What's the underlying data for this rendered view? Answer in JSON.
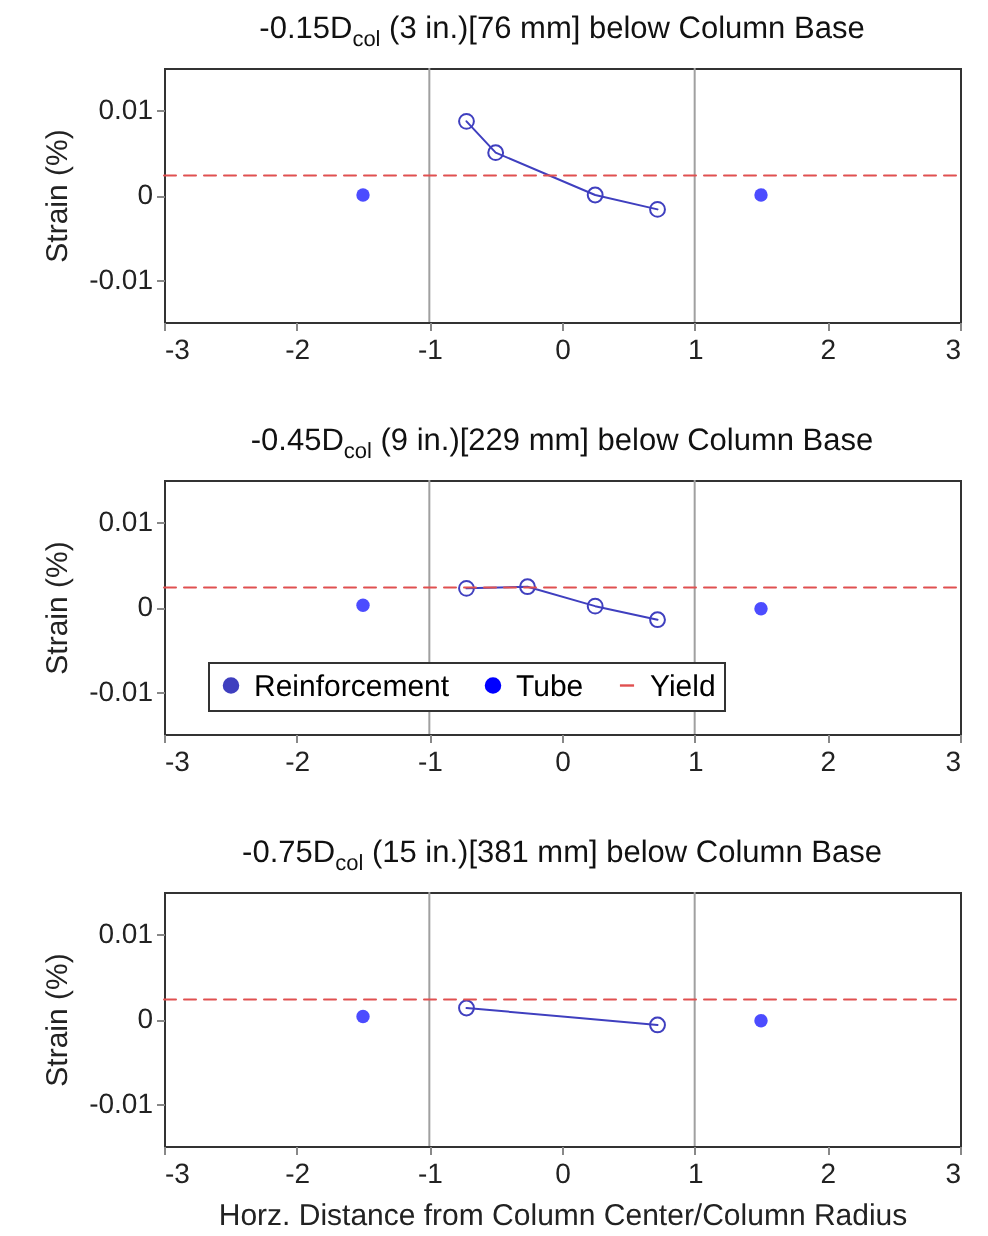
{
  "chart_data": [
    {
      "type": "line",
      "title": "-0.15D$_{col}$ (3 in.)[76 mm] below Column Base",
      "ylabel": "Strain (%)",
      "xlim": [
        -3,
        3
      ],
      "xticks": [
        -3,
        -2,
        -1,
        0,
        1,
        2,
        3
      ],
      "ylim": [
        -0.015,
        0.015
      ],
      "yticks": [
        -0.01,
        0,
        0.01
      ],
      "grid": false,
      "legend": false,
      "series": [
        {
          "type": "line",
          "color": "#3f3fbf",
          "marker": "circle",
          "x": [
            -0.72,
            -0.5,
            0.25,
            0.72
          ],
          "values": [
            0.0087,
            0.005,
            0,
            -0.0017
          ]
        },
        {
          "type": "scatter",
          "color": "#0000ff",
          "marker": "circle",
          "x": [
            -1.5,
            1.5
          ],
          "values": [
            0,
            0
          ]
        },
        {
          "type": "line",
          "color": "#e05050",
          "marker": "none",
          "line_style": "dashed",
          "x": [
            -3,
            3
          ],
          "values": [
            0.0023,
            0.0023
          ]
        }
      ],
      "ref_lines": [
        {
          "axis": "x",
          "value": -1,
          "color": "#a0a0a0"
        },
        {
          "axis": "x",
          "value": 1,
          "color": "#a0a0a0"
        }
      ]
    },
    {
      "type": "line",
      "title": "-0.45D$_{col}$ (9 in.)[229 mm] below Column Base",
      "ylabel": "Strain (%)",
      "xlim": [
        -3,
        3
      ],
      "xticks": [
        -3,
        -2,
        -1,
        0,
        1,
        2,
        3
      ],
      "ylim": [
        -0.015,
        0.015
      ],
      "yticks": [
        -0.01,
        0,
        0.01
      ],
      "grid": false,
      "legend": "bottom",
      "series": [
        {
          "name": "Reinforcement",
          "type": "line",
          "color": "#3f3fbf",
          "marker": "circle",
          "x": [
            -0.72,
            -0.26,
            0.25,
            0.72
          ],
          "values": [
            0.0022,
            0.0024,
            0.0001,
            -0.0015
          ]
        },
        {
          "name": "Tube",
          "type": "scatter",
          "color": "#0000ff",
          "marker": "circle",
          "x": [
            -1.5,
            1.5
          ],
          "values": [
            0.0002,
            -0.0002
          ]
        },
        {
          "name": "Yield",
          "type": "line",
          "color": "#e05050",
          "marker": "none",
          "line_style": "dashed",
          "x": [
            -3,
            3
          ],
          "values": [
            0.0023,
            0.0023
          ]
        }
      ],
      "ref_lines": [
        {
          "axis": "x",
          "value": -1,
          "color": "#a0a0a0"
        },
        {
          "axis": "x",
          "value": 1,
          "color": "#a0a0a0"
        }
      ]
    },
    {
      "type": "line",
      "title": "-0.75D$_{col}$ (15 in.)[381 mm] below Column Base",
      "xlabel": "Horz. Distance from Column Center/Column Radius",
      "ylabel": "Strain (%)",
      "xlim": [
        -3,
        3
      ],
      "xticks": [
        -3,
        -2,
        -1,
        0,
        1,
        2,
        3
      ],
      "ylim": [
        -0.015,
        0.015
      ],
      "yticks": [
        -0.01,
        0,
        0.01
      ],
      "grid": false,
      "legend": false,
      "series": [
        {
          "type": "line",
          "color": "#3f3fbf",
          "marker": "circle",
          "x": [
            -0.72,
            0.72
          ],
          "values": [
            0.0013,
            -0.0007
          ]
        },
        {
          "type": "scatter",
          "color": "#0000ff",
          "marker": "circle",
          "x": [
            -1.5,
            1.5
          ],
          "values": [
            0.0003,
            -0.0002
          ]
        },
        {
          "type": "line",
          "color": "#e05050",
          "marker": "none",
          "line_style": "dashed",
          "x": [
            -3,
            3
          ],
          "values": [
            0.0023,
            0.0023
          ]
        }
      ],
      "ref_lines": [
        {
          "axis": "x",
          "value": -1,
          "color": "#a0a0a0"
        },
        {
          "axis": "x",
          "value": 1,
          "color": "#a0a0a0"
        }
      ]
    }
  ]
}
